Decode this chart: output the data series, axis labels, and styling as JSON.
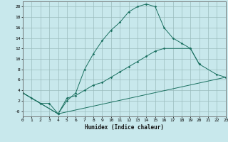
{
  "xlabel": "Humidex (Indice chaleur)",
  "background_color": "#c8e8ec",
  "grid_color": "#9bbcbe",
  "line_color": "#1a7060",
  "xlim": [
    0,
    23
  ],
  "ylim": [
    -1,
    21
  ],
  "xtick_vals": [
    0,
    1,
    2,
    3,
    4,
    5,
    6,
    7,
    8,
    9,
    10,
    11,
    12,
    13,
    14,
    15,
    16,
    17,
    18,
    19,
    20,
    21,
    22,
    23
  ],
  "ytick_vals": [
    0,
    2,
    4,
    6,
    8,
    10,
    12,
    14,
    16,
    18,
    20
  ],
  "ytick_labels": [
    "-0",
    "2",
    "4",
    "6",
    "8",
    "10",
    "12",
    "14",
    "16",
    "18",
    "20"
  ],
  "curve1_x": [
    0,
    1,
    2,
    3,
    4,
    5,
    6,
    7,
    8,
    9,
    10,
    11,
    12,
    13,
    14,
    15,
    16,
    17,
    18,
    19,
    20
  ],
  "curve1_y": [
    3.5,
    2.5,
    1.5,
    1.5,
    -0.5,
    2.0,
    3.5,
    8.0,
    11.0,
    13.5,
    15.5,
    17.0,
    19.0,
    20.0,
    20.5,
    20.0,
    16.0,
    14.0,
    13.0,
    12.0,
    9.0
  ],
  "curve2_x": [
    0,
    4,
    5,
    6,
    7,
    8,
    9,
    10,
    11,
    12,
    13,
    14,
    15,
    16,
    19,
    20,
    22,
    23
  ],
  "curve2_y": [
    3.5,
    -0.5,
    2.5,
    3.0,
    4.0,
    5.0,
    5.5,
    6.5,
    7.5,
    8.5,
    9.5,
    10.5,
    11.5,
    12.0,
    12.0,
    9.0,
    7.0,
    6.5
  ],
  "curve3_x": [
    0,
    4,
    23
  ],
  "curve3_y": [
    3.5,
    -0.5,
    6.5
  ]
}
